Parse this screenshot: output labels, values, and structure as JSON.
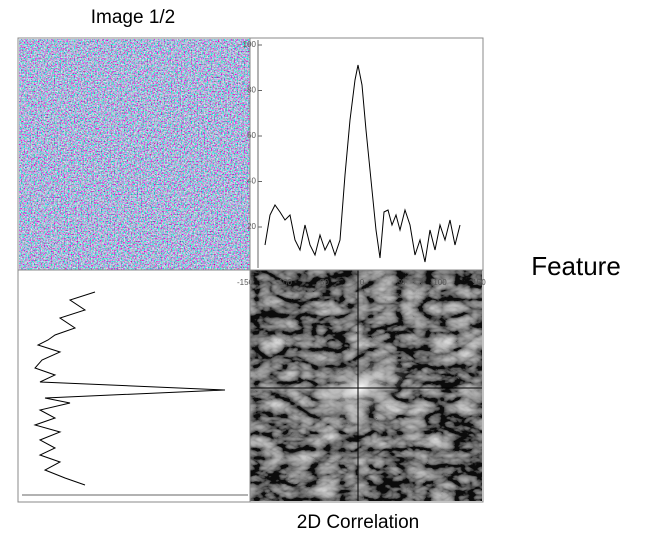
{
  "header": {
    "title": "Image 1/2"
  },
  "side_label": "Feature",
  "footer": {
    "caption": "2D Correlation"
  },
  "profile_plot": {
    "yticks": [
      "100",
      "80",
      "60",
      "40",
      "20"
    ],
    "xticks": [
      "-150",
      "-100",
      "-50",
      "0",
      "50",
      "100",
      "150"
    ]
  }
}
